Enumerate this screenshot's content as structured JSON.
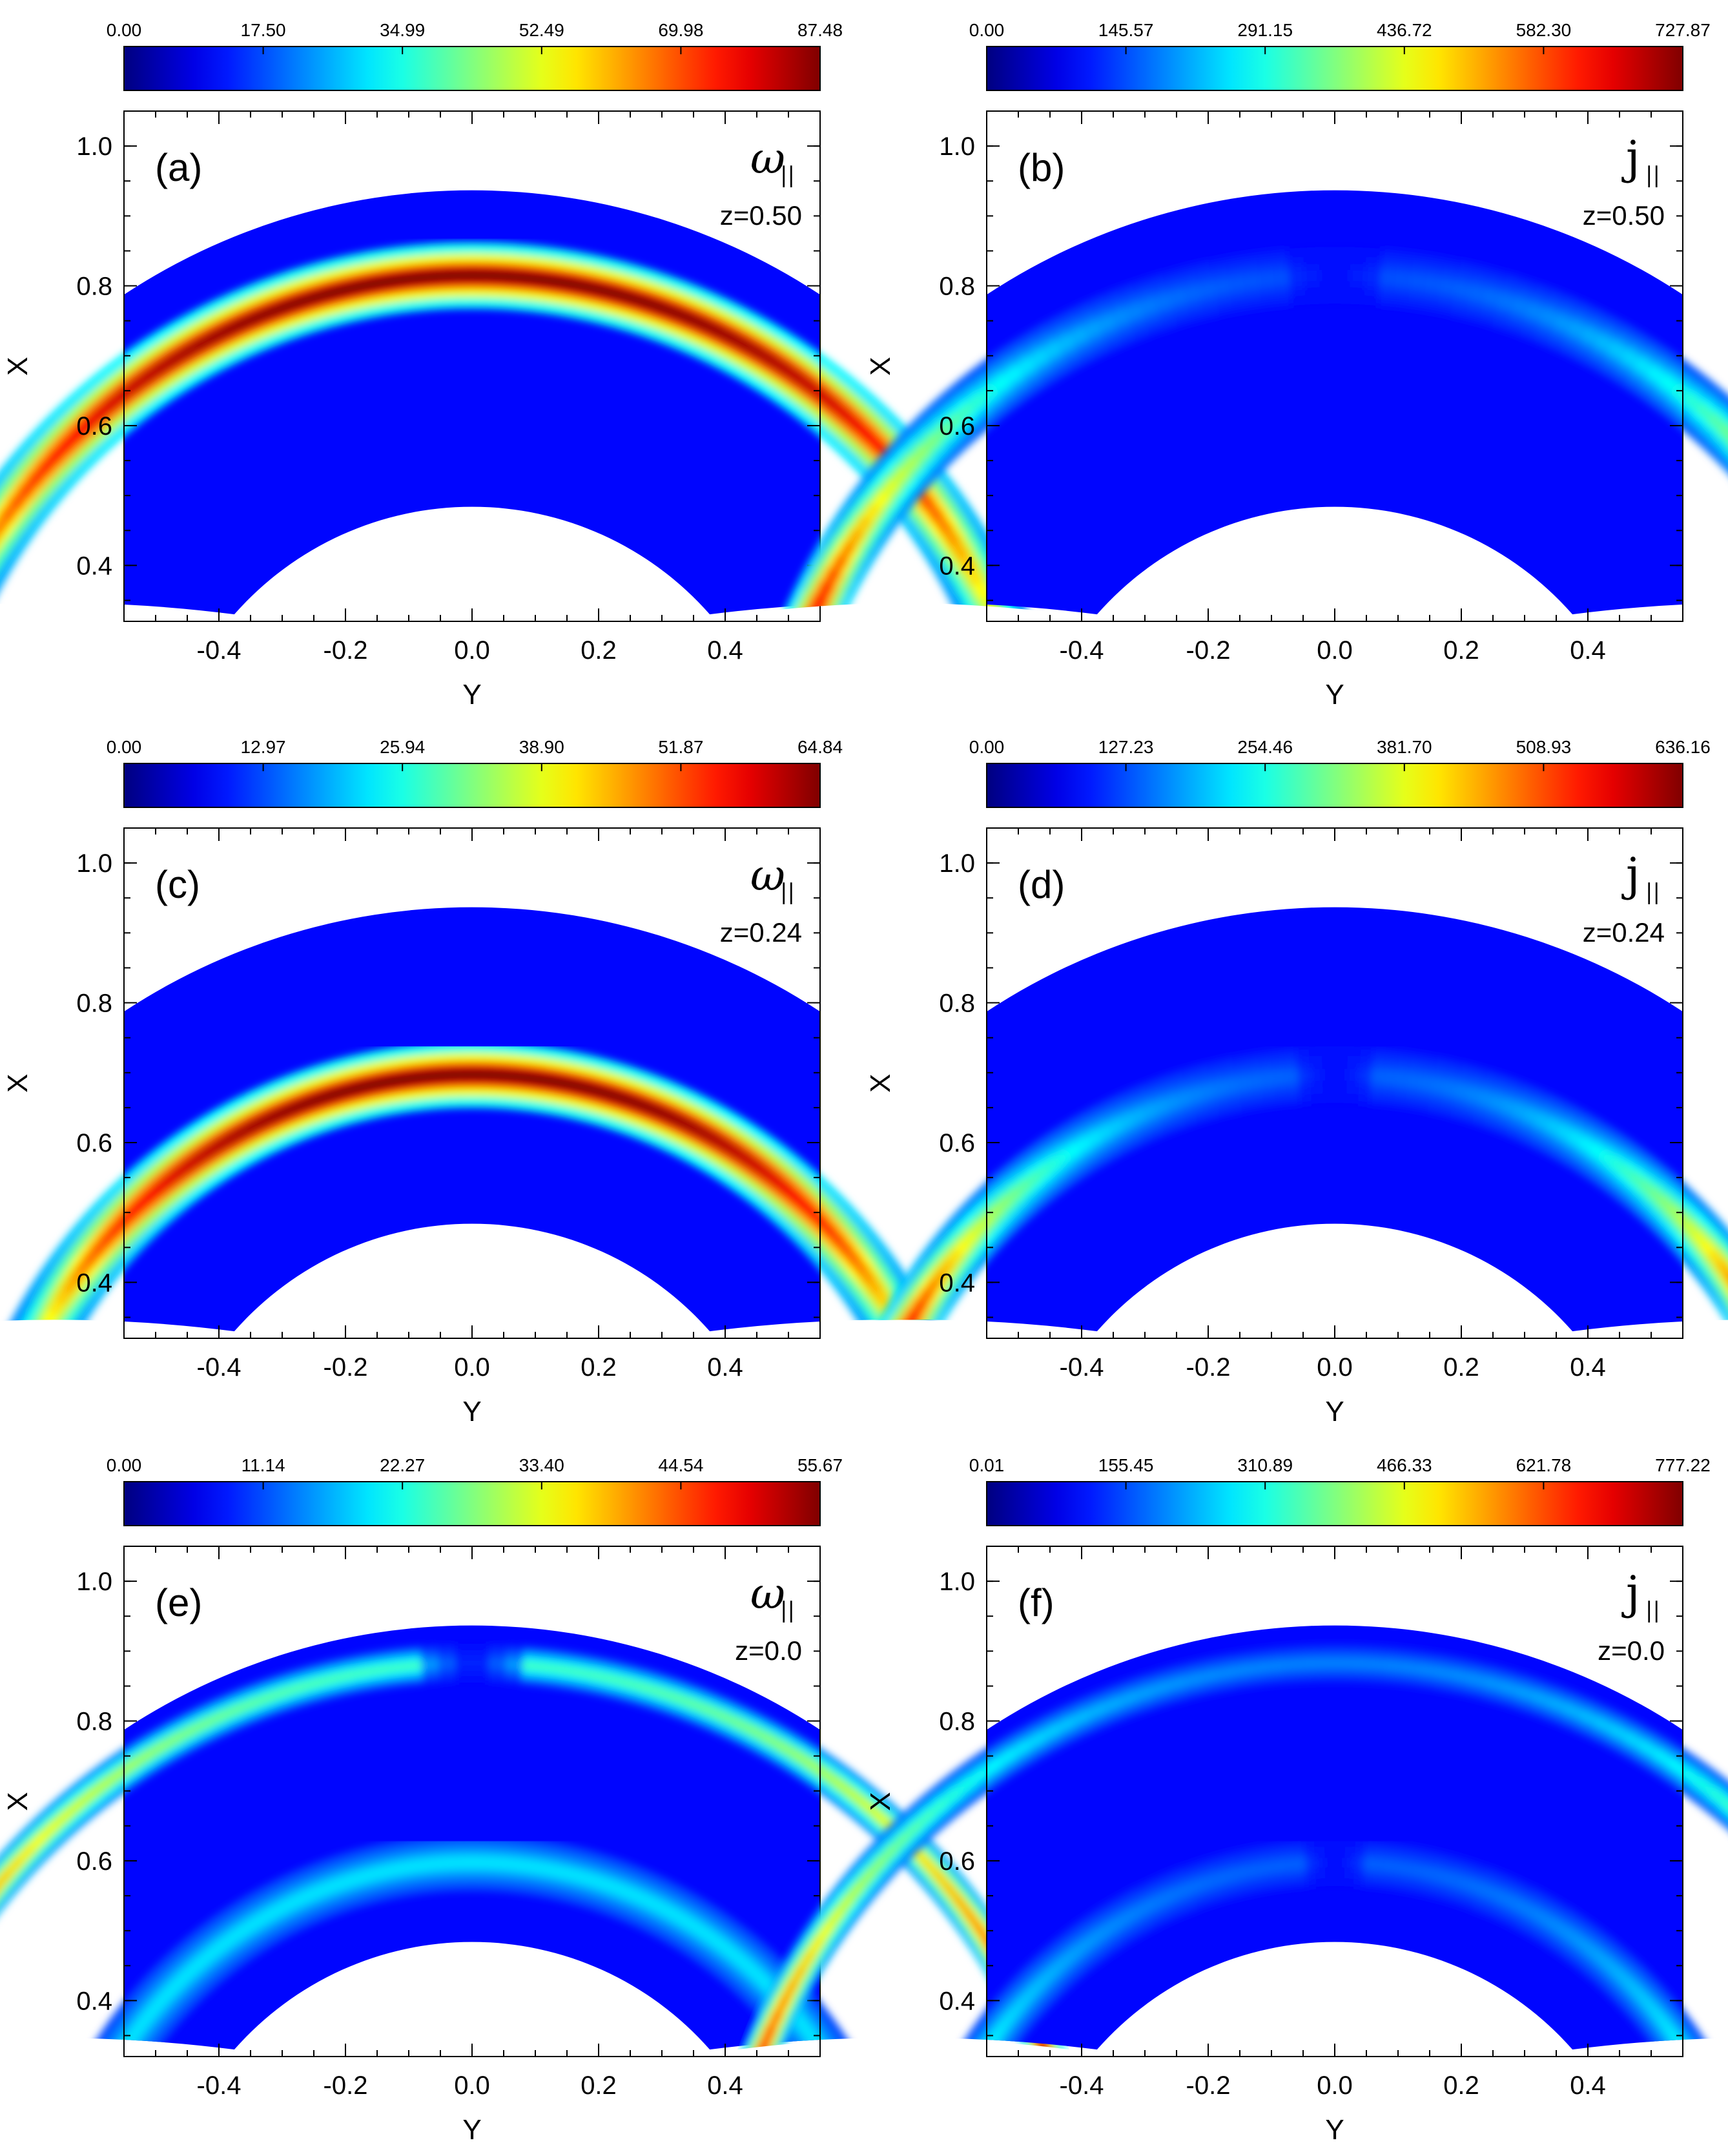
{
  "chart_data": [
    {
      "type": "heatmap",
      "panel": "(a)",
      "quantity": "ω",
      "subscript": "||",
      "z_label": "z=0.50",
      "colorbar": {
        "ticks": [
          "0.00",
          "17.50",
          "34.99",
          "52.49",
          "69.98",
          "87.48"
        ],
        "min": 0,
        "max": 87.48
      },
      "xlabel": "Y",
      "ylabel": "X",
      "xlim": [
        -0.55,
        0.55
      ],
      "ylim": [
        0.32,
        1.05
      ],
      "xticks": [
        "-0.4",
        "-0.2",
        "0.0",
        "0.2",
        "0.4"
      ],
      "yticks": [
        "0.4",
        "0.6",
        "0.8",
        "1.0"
      ],
      "colormap": "jet",
      "domain": {
        "outer_radius": 1.0,
        "inner_radius": 0.5,
        "min_x": 0.33
      },
      "features": [
        {
          "shape": "arc",
          "radius": 0.9,
          "width": 0.035,
          "level": 1.0,
          "fade_x": 0.35
        }
      ]
    },
    {
      "type": "heatmap",
      "panel": "(b)",
      "quantity": "j",
      "subscript": "||",
      "z_label": "z=0.50",
      "colorbar": {
        "ticks": [
          "0.00",
          "145.57",
          "291.15",
          "436.72",
          "582.30",
          "727.87"
        ],
        "min": 0,
        "max": 727.87
      },
      "xlabel": "Y",
      "ylabel": "X",
      "xlim": [
        -0.55,
        0.55
      ],
      "ylim": [
        0.32,
        1.05
      ],
      "xticks": [
        "-0.4",
        "-0.2",
        "0.0",
        "0.2",
        "0.4"
      ],
      "yticks": [
        "0.4",
        "0.6",
        "0.8",
        "1.0"
      ],
      "colormap": "jet",
      "domain": {
        "outer_radius": 1.0,
        "inner_radius": 0.5,
        "min_x": 0.33
      },
      "features": [
        {
          "shape": "arc",
          "radius": 0.9,
          "width": 0.03,
          "level_top": 0.08,
          "level_bottom": 0.95,
          "gap_top": true
        }
      ]
    },
    {
      "type": "heatmap",
      "panel": "(c)",
      "quantity": "ω",
      "subscript": "||",
      "z_label": "z=0.24",
      "colorbar": {
        "ticks": [
          "0.00",
          "12.97",
          "25.94",
          "38.90",
          "51.87",
          "64.84"
        ],
        "min": 0,
        "max": 64.84
      },
      "xlabel": "Y",
      "ylabel": "X",
      "xlim": [
        -0.55,
        0.55
      ],
      "ylim": [
        0.32,
        1.05
      ],
      "xticks": [
        "-0.4",
        "-0.2",
        "0.0",
        "0.2",
        "0.4"
      ],
      "yticks": [
        "0.4",
        "0.6",
        "0.8",
        "1.0"
      ],
      "colormap": "jet",
      "domain": {
        "outer_radius": 1.0,
        "inner_radius": 0.5,
        "min_x": 0.33
      },
      "features": [
        {
          "shape": "arc",
          "radius": 0.77,
          "width": 0.035,
          "level": 1.0,
          "fade_x": 0.37
        }
      ]
    },
    {
      "type": "heatmap",
      "panel": "(d)",
      "quantity": "j",
      "subscript": "||",
      "z_label": "z=0.24",
      "colorbar": {
        "ticks": [
          "0.00",
          "127.23",
          "254.46",
          "381.70",
          "508.93",
          "636.16"
        ],
        "min": 0,
        "max": 636.16
      },
      "xlabel": "Y",
      "ylabel": "X",
      "xlim": [
        -0.55,
        0.55
      ],
      "ylim": [
        0.32,
        1.05
      ],
      "xticks": [
        "-0.4",
        "-0.2",
        "0.0",
        "0.2",
        "0.4"
      ],
      "yticks": [
        "0.4",
        "0.6",
        "0.8",
        "1.0"
      ],
      "colormap": "jet",
      "domain": {
        "outer_radius": 1.0,
        "inner_radius": 0.5,
        "min_x": 0.33
      },
      "features": [
        {
          "shape": "arc",
          "radius": 0.77,
          "width": 0.03,
          "level_top": 0.1,
          "level_bottom": 0.95,
          "gap_top": true
        }
      ]
    },
    {
      "type": "heatmap",
      "panel": "(e)",
      "quantity": "ω",
      "subscript": "||",
      "z_label": "z=0.0",
      "colorbar": {
        "ticks": [
          "0.00",
          "11.14",
          "22.27",
          "33.40",
          "44.54",
          "55.67"
        ],
        "min": 0,
        "max": 55.67
      },
      "xlabel": "Y",
      "ylabel": "X",
      "xlim": [
        -0.55,
        0.55
      ],
      "ylim": [
        0.32,
        1.05
      ],
      "xticks": [
        "-0.4",
        "-0.2",
        "0.0",
        "0.2",
        "0.4"
      ],
      "yticks": [
        "0.4",
        "0.6",
        "0.8",
        "1.0"
      ],
      "colormap": "jet",
      "domain": {
        "outer_radius": 1.0,
        "inner_radius": 0.5,
        "min_x": 0.33
      },
      "features": [
        {
          "shape": "arc",
          "radius": 0.975,
          "width": 0.02,
          "level_top": 0.35,
          "level_bottom": 0.95,
          "gap_top": true
        },
        {
          "shape": "arc",
          "radius": 0.66,
          "width": 0.03,
          "level": 0.25
        }
      ]
    },
    {
      "type": "heatmap",
      "panel": "(f)",
      "quantity": "j",
      "subscript": "||",
      "z_label": "z=0.0",
      "colorbar": {
        "ticks": [
          "0.01",
          "155.45",
          "310.89",
          "466.33",
          "621.78",
          "777.22"
        ],
        "min": 0.01,
        "max": 777.22
      },
      "xlabel": "Y",
      "ylabel": "X",
      "xlim": [
        -0.55,
        0.55
      ],
      "ylim": [
        0.32,
        1.05
      ],
      "xticks": [
        "-0.4",
        "-0.2",
        "0.0",
        "0.2",
        "0.4"
      ],
      "yticks": [
        "0.4",
        "0.6",
        "0.8",
        "1.0"
      ],
      "colormap": "jet",
      "domain": {
        "outer_radius": 1.0,
        "inner_radius": 0.5,
        "min_x": 0.33
      },
      "features": [
        {
          "shape": "arc",
          "radius": 0.975,
          "width": 0.02,
          "level_top": 0.14,
          "level_bottom": 0.85
        },
        {
          "shape": "arc",
          "radius": 0.66,
          "width": 0.025,
          "level_top": 0.1,
          "level_bottom": 0.3,
          "gap_top": true
        }
      ]
    }
  ]
}
